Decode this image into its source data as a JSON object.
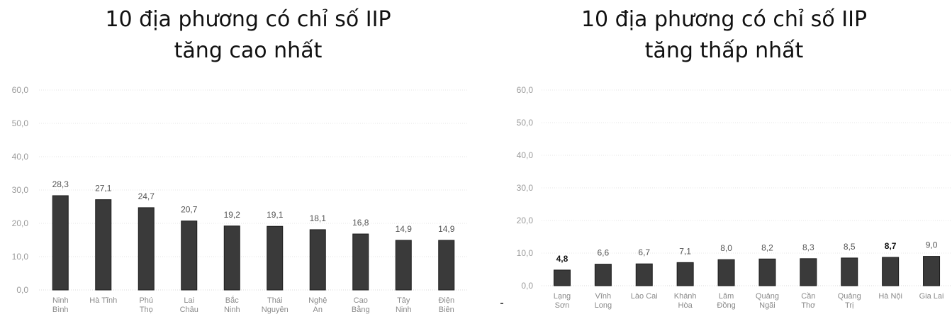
{
  "charts": {
    "left": {
      "title_line1": "10 địa phương có chỉ số IIP",
      "title_line2": "tăng cao nhất"
    },
    "right": {
      "title_line1": "10 địa phương có chỉ số IIP",
      "title_line2": "tăng thấp nhất"
    }
  },
  "colors": {
    "bar": "#3a3a3a",
    "bar_edge": "#1c1c1c",
    "grid": "#e4e4e4"
  },
  "chart_data": [
    {
      "type": "bar",
      "title": "10 địa phương có chỉ số IIP tăng cao nhất",
      "categories": [
        [
          "Ninh",
          "Bình"
        ],
        [
          "Hà Tĩnh"
        ],
        [
          "Phú",
          "Thọ"
        ],
        [
          "Lai",
          "Châu"
        ],
        [
          "Bắc",
          "Ninh"
        ],
        [
          "Thái",
          "Nguyên"
        ],
        [
          "Nghệ",
          "An"
        ],
        [
          "Cao",
          "Bằng"
        ],
        [
          "Tây",
          "Ninh"
        ],
        [
          "Điện",
          "Biên"
        ]
      ],
      "values": [
        28.3,
        27.1,
        24.7,
        20.7,
        19.2,
        19.1,
        18.1,
        16.8,
        14.9,
        14.9
      ],
      "value_labels": [
        "28,3",
        "27,1",
        "24,7",
        "20,7",
        "19,2",
        "19,1",
        "18,1",
        "16,8",
        "14,9",
        "14,9"
      ],
      "yticks": [
        "0,0",
        "10,0",
        "20,0",
        "30,0",
        "40,0",
        "50,0",
        "60,0"
      ],
      "ylim": [
        0,
        60
      ],
      "grid": true,
      "xlabel": "",
      "ylabel": ""
    },
    {
      "type": "bar",
      "title": "10 địa phương có chỉ số IIP tăng thấp nhất",
      "categories": [
        [
          "Lạng",
          "Sơn"
        ],
        [
          "Vĩnh",
          "Long"
        ],
        [
          "Lào Cai"
        ],
        [
          "Khánh",
          "Hòa"
        ],
        [
          "Lâm",
          "Đồng"
        ],
        [
          "Quảng",
          "Ngãi"
        ],
        [
          "Cần",
          "Thơ"
        ],
        [
          "Quảng",
          "Trị"
        ],
        [
          "Hà Nội"
        ],
        [
          "Gia Lai"
        ]
      ],
      "values": [
        4.8,
        6.6,
        6.7,
        7.1,
        8.0,
        8.2,
        8.3,
        8.5,
        8.7,
        9.0
      ],
      "value_labels": [
        "4,8",
        "6,6",
        "6,7",
        "7,1",
        "8,0",
        "8,2",
        "8,3",
        "8,5",
        "8,7",
        "9,0"
      ],
      "yticks": [
        "0,0",
        "10,0",
        "20,0",
        "30,0",
        "40,0",
        "50,0",
        "60,0"
      ],
      "ylim": [
        0,
        60
      ],
      "grid": true,
      "xlabel": "",
      "ylabel": ""
    }
  ]
}
